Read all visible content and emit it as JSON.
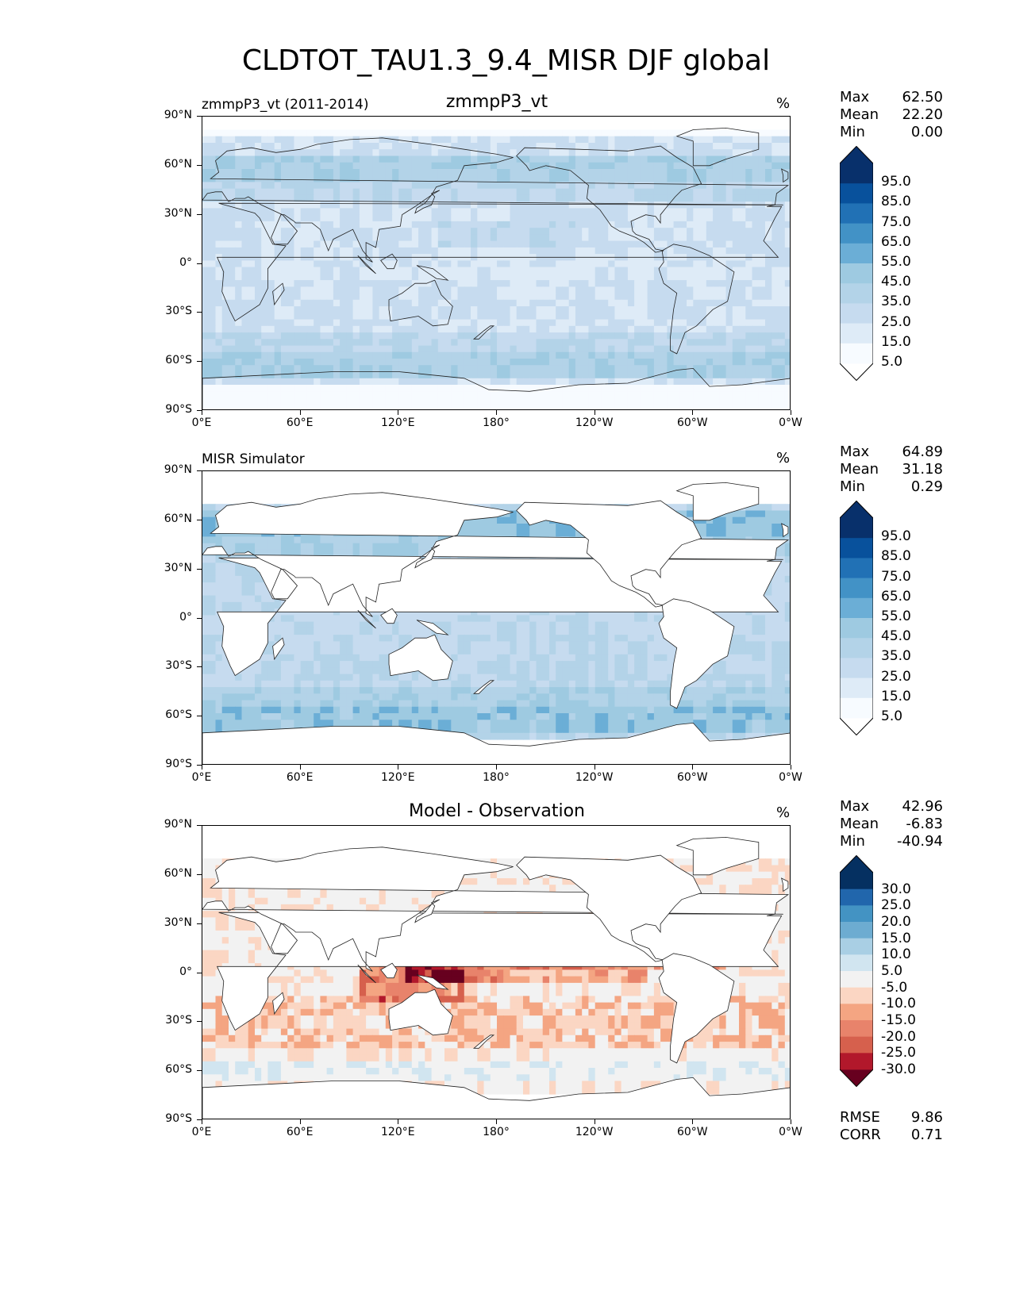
{
  "title": "CLDTOT_TAU1.3_9.4_MISR DJF global",
  "axes": {
    "y_ticks": [
      "90°N",
      "60°N",
      "30°N",
      "0°",
      "30°S",
      "60°S",
      "90°S"
    ],
    "x_ticks": [
      "0°E",
      "60°E",
      "120°E",
      "180°",
      "120°W",
      "60°W",
      "0°W"
    ]
  },
  "panels": [
    {
      "left_label": "zmmpP3_vt (2011-2014)",
      "center_label": "zmmpP3_vt",
      "units": "%",
      "stats": {
        "max_label": "Max",
        "max": "62.50",
        "mean_label": "Mean",
        "mean": "22.20",
        "min_label": "Min",
        "min": "0.00"
      },
      "colorbar_labels": [
        "95.0",
        "85.0",
        "75.0",
        "65.0",
        "55.0",
        "45.0",
        "35.0",
        "25.0",
        "15.0",
        "5.0"
      ],
      "colormap": "blues",
      "fill": "full"
    },
    {
      "left_label": "MISR Simulator",
      "center_label": "",
      "units": "%",
      "stats": {
        "max_label": "Max",
        "max": "64.89",
        "mean_label": "Mean",
        "mean": "31.18",
        "min_label": "Min",
        "min": "0.29"
      },
      "colorbar_labels": [
        "95.0",
        "85.0",
        "75.0",
        "65.0",
        "55.0",
        "45.0",
        "35.0",
        "25.0",
        "15.0",
        "5.0"
      ],
      "colormap": "blues",
      "fill": "ocean"
    },
    {
      "left_label": "",
      "center_label": "Model - Observation",
      "units": "%",
      "stats": {
        "max_label": "Max",
        "max": "42.96",
        "mean_label": "Mean",
        "mean": "-6.83",
        "min_label": "Min",
        "min": "-40.94"
      },
      "colorbar_labels": [
        "30.0",
        "25.0",
        "20.0",
        "15.0",
        "10.0",
        "5.0",
        "-5.0",
        "-10.0",
        "-15.0",
        "-20.0",
        "-25.0",
        "-30.0"
      ],
      "colormap": "rdbu",
      "fill": "ocean",
      "rmse_label": "RMSE",
      "rmse": "9.86",
      "corr_label": "CORR",
      "corr": "0.71"
    }
  ],
  "colors": {
    "blues": [
      "#f7fbff",
      "#deebf7",
      "#c6dbef",
      "#b3d3e8",
      "#9ecae1",
      "#6baed6",
      "#4292c6",
      "#2171b5",
      "#08519c",
      "#08306b"
    ],
    "rdbu_neg": [
      "#67001f",
      "#b2182b",
      "#d6604d",
      "#e8836b",
      "#f4a582",
      "#fbd6c3"
    ],
    "rdbu_neutral": "#f2f2f2",
    "rdbu_pos": [
      "#d1e5f0",
      "#a9cfe4",
      "#6dacd1",
      "#4393c3",
      "#2166ac",
      "#053061"
    ]
  }
}
